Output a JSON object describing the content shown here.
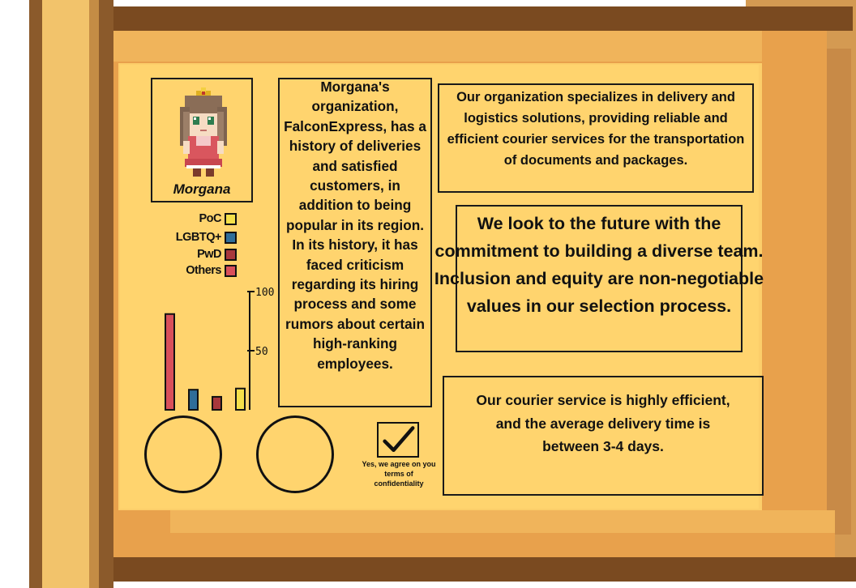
{
  "character": {
    "name": "Morgana"
  },
  "panels": {
    "history": "Morgana's organization, FalconExpress, has a history of deliveries and satisfied customers, in addition to being popular in its region. In its history, it has faced criticism regarding its hiring process and some rumors about certain high-ranking employees.",
    "organization": "Our organization specializes in delivery and logistics solutions, providing reliable and efficient courier services for the transportation of documents and packages.",
    "diversity": "We look to the future with the commitment to building a diverse team. Inclusion and equity are non-negotiable values in our selection process.",
    "courier": "Our courier service is highly efficient, and the average delivery time is between 3-4 days."
  },
  "legend": [
    {
      "label": "PoC",
      "color": "#f5e04a"
    },
    {
      "label": "LGBTQ+",
      "color": "#2f6e99"
    },
    {
      "label": "PwD",
      "color": "#a8383c"
    },
    {
      "label": "Others",
      "color": "#d9505a"
    }
  ],
  "chart_data": {
    "type": "bar",
    "categories": [
      "Others",
      "LGBTQ+",
      "PwD",
      "PoC"
    ],
    "values": [
      81,
      17,
      11,
      18
    ],
    "colors": [
      "#d9505a",
      "#2f6e99",
      "#a8383c",
      "#f5e04a"
    ],
    "ylim": [
      0,
      100
    ],
    "yticks": [
      50,
      100
    ],
    "ytick_labels": [
      "50",
      "100"
    ],
    "legend_position": "top"
  },
  "agreement": {
    "checked": true,
    "label": "Yes, we agree on you terms of confidentiality",
    "check_glyph": "✔"
  },
  "theme": {
    "parchment": "#ffd46e",
    "scroll_dark": "#7a4a20",
    "scroll_mid": "#e8a14c"
  }
}
